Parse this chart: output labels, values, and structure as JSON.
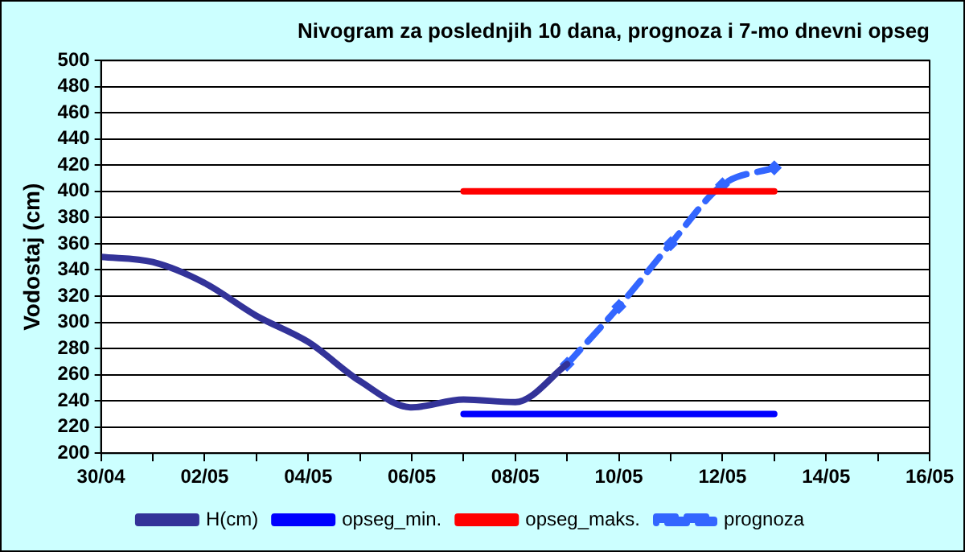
{
  "chart_data": {
    "type": "line",
    "title": "Nivogram za poslednjih 10 dana, prognoza i 7-mo dnevni opseg",
    "ylabel": "Vodostaj (cm)",
    "xlim": [
      "--04-30",
      "--05-16"
    ],
    "xticks": [
      {
        "value": "--04-30",
        "label": "30/04"
      },
      {
        "value": "--05-01",
        "label": null
      },
      {
        "value": "--05-02",
        "label": "02/05"
      },
      {
        "value": "--05-03",
        "label": null
      },
      {
        "value": "--05-04",
        "label": "04/05"
      },
      {
        "value": "--05-05",
        "label": null
      },
      {
        "value": "--05-06",
        "label": "06/05"
      },
      {
        "value": "--05-07",
        "label": null
      },
      {
        "value": "--05-08",
        "label": "08/05"
      },
      {
        "value": "--05-09",
        "label": null
      },
      {
        "value": "--05-10",
        "label": "10/05"
      },
      {
        "value": "--05-11",
        "label": null
      },
      {
        "value": "--05-12",
        "label": "12/05"
      },
      {
        "value": "--05-13",
        "label": null
      },
      {
        "value": "--05-14",
        "label": "14/05"
      },
      {
        "value": "--05-15",
        "label": null
      },
      {
        "value": "--05-16",
        "label": "16/05"
      }
    ],
    "ylim": [
      200,
      500
    ],
    "yticks": [
      200,
      220,
      240,
      260,
      280,
      300,
      320,
      340,
      360,
      380,
      400,
      420,
      440,
      460,
      480,
      500
    ],
    "grid": "y",
    "legend": "bottom",
    "series": [
      {
        "name": "H(cm)",
        "color": "#333399",
        "x": [
          "--04-30",
          "--05-01",
          "--05-02",
          "--05-03",
          "--05-04",
          "--05-05",
          "--05-06",
          "--05-07",
          "--05-08",
          "--05-09"
        ],
        "values": [
          350,
          346,
          330,
          305,
          285,
          255,
          235,
          241,
          239,
          268
        ]
      },
      {
        "name": "opseg_min.",
        "color": "#0000ff",
        "x": [
          "--05-07",
          "--05-13"
        ],
        "values": [
          230,
          230
        ]
      },
      {
        "name": "opseg_maks.",
        "color": "#ff0000",
        "x": [
          "--05-07",
          "--05-13"
        ],
        "values": [
          400,
          400
        ]
      },
      {
        "name": "prognoza",
        "color": "#3366ff",
        "line_style": "dashed",
        "marker": "diamond",
        "x": [
          "--05-09",
          "--05-10",
          "--05-11",
          "--05-12",
          "--05-13"
        ],
        "values": [
          268,
          312,
          360,
          405,
          418
        ]
      }
    ]
  }
}
